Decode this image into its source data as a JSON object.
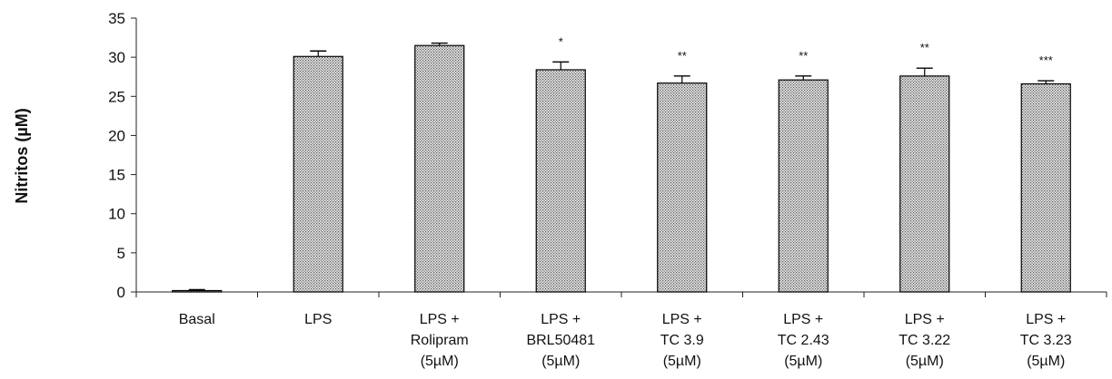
{
  "chart_data": {
    "type": "bar",
    "ylabel": "Nitritos (µM)",
    "ylim": [
      0,
      35
    ],
    "yticks": [
      0,
      5,
      10,
      15,
      20,
      25,
      30,
      35
    ],
    "grid": false,
    "categories": [
      [
        "Basal"
      ],
      [
        "LPS"
      ],
      [
        "LPS +",
        "Rolipram",
        "(5µM)"
      ],
      [
        "LPS +",
        "BRL50481",
        "(5µM)"
      ],
      [
        "LPS +",
        "TC 3.9",
        "(5µM)"
      ],
      [
        "LPS +",
        "TC 2.43",
        "(5µM)"
      ],
      [
        "LPS +",
        "TC 3.22",
        "(5µM)"
      ],
      [
        "LPS +",
        "TC 3.23",
        "(5µM)"
      ]
    ],
    "values": [
      0.1,
      30.1,
      31.5,
      28.4,
      26.7,
      27.1,
      27.6,
      26.6
    ],
    "errors": [
      0.2,
      0.7,
      0.3,
      1.0,
      0.9,
      0.5,
      1.0,
      0.4
    ],
    "significance": [
      "",
      "",
      "",
      "*",
      "**",
      "**",
      "**",
      "***"
    ],
    "bar_fill": "#c8c8c8",
    "bar_stroke": "#000000"
  }
}
